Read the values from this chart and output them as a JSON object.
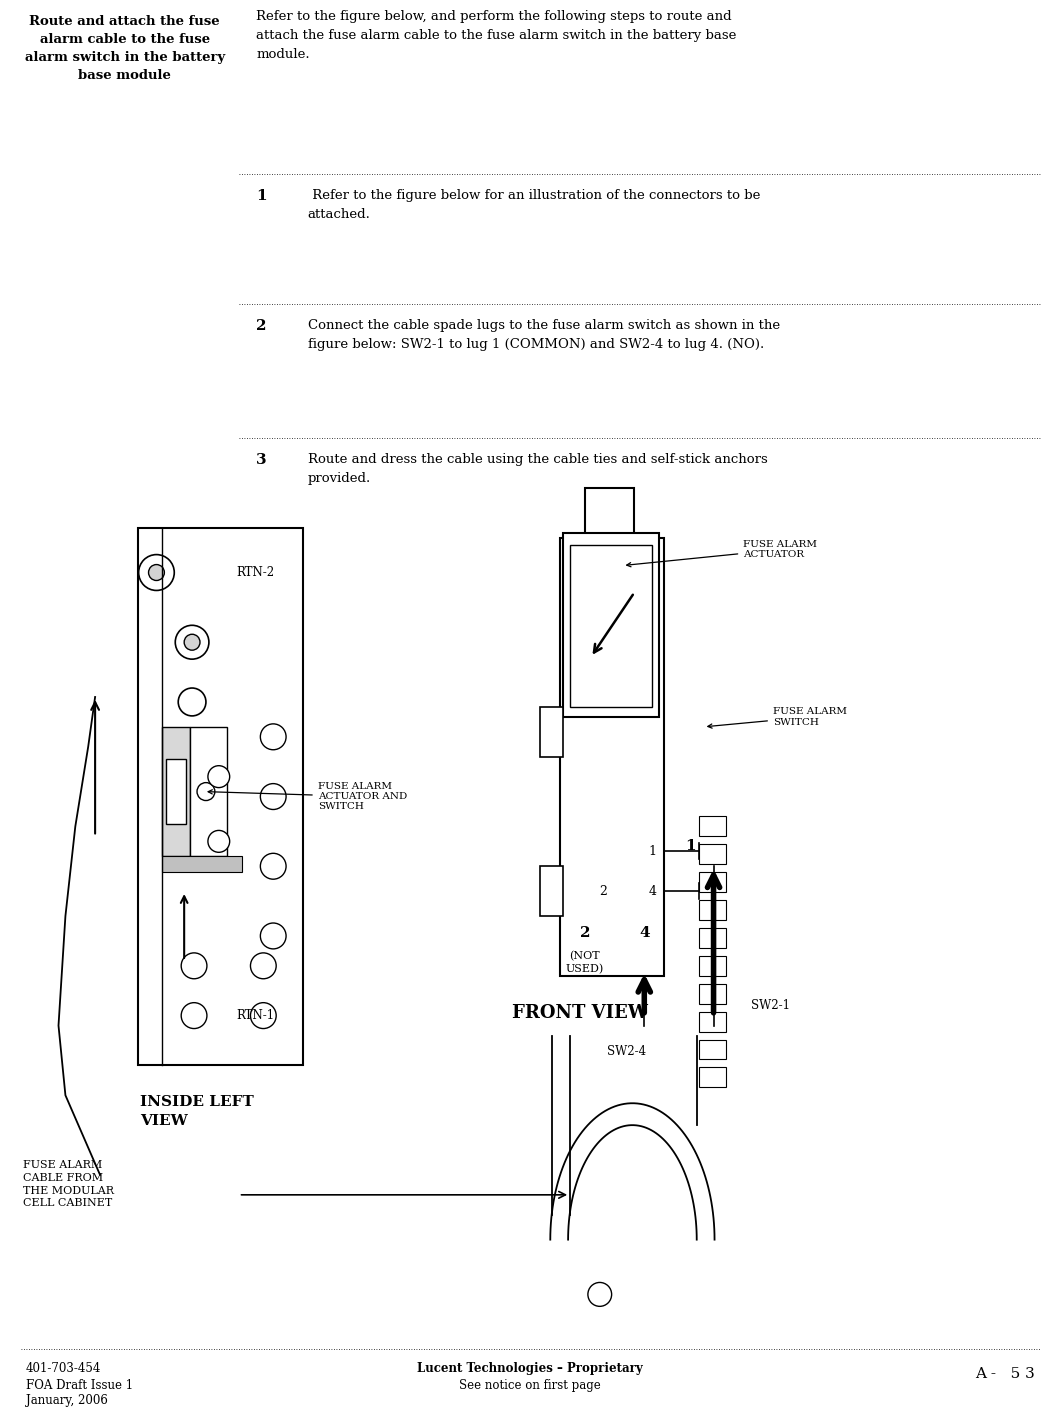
{
  "page_width": 10.49,
  "page_height": 14.09,
  "bg_color": "#ffffff",
  "header_left_bold": "Route and attach the fuse\nalarm cable to the fuse\nalarm switch in the battery\nbase module",
  "header_right": "Refer to the figure below, and perform the following steps to route and\nattach the fuse alarm cable to the fuse alarm switch in the battery base\nmodule.",
  "step1_num": "1",
  "step1_text": " Refer to the figure below for an illustration of the connectors to be\nattached.",
  "step2_num": "2",
  "step2_text": "Connect the cable spade lugs to the fuse alarm switch as shown in the\nfigure below: SW2-1 to lug 1 (COMMON) and SW2-4 to lug 4. (NO).",
  "step3_num": "3",
  "step3_text": "Route and dress the cable using the cable ties and self-stick anchors\nprovided.",
  "footer_left1": "401-703-454",
  "footer_left2": "FOA Draft Issue 1",
  "footer_left3": "January, 2006",
  "footer_center1": "Lucent Technologies – Proprietary",
  "footer_center2": "See notice on first page",
  "footer_right": "A -   5 3",
  "text_color": "#000000"
}
